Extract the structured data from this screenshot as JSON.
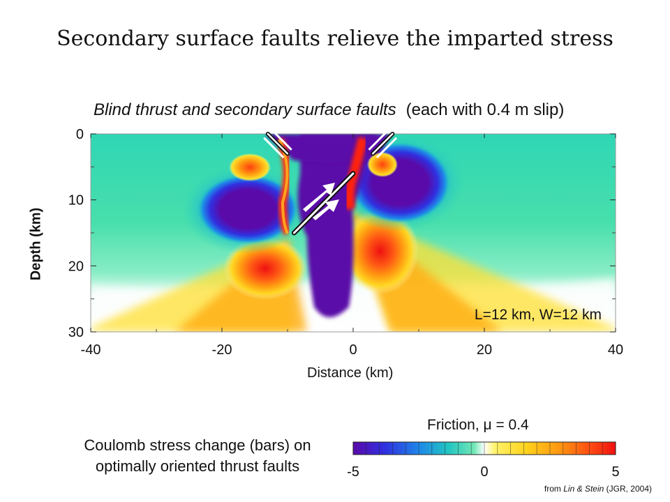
{
  "header": {
    "title": "Secondary surface faults relieve the imparted stress"
  },
  "plot": {
    "title_italic": "Blind thrust and secondary surface faults",
    "title_paren": "(each with 0.4 m slip)",
    "annotation": "L=12 km, W=12 km"
  },
  "chart_data": {
    "type": "heatmap",
    "title": "Blind thrust and secondary surface faults (each with 0.4 m slip)",
    "xlabel": "Distance  (km)",
    "ylabel": "Depth (km)",
    "xlim": [
      -40,
      40
    ],
    "ylim": [
      0,
      30
    ],
    "y_inverted": true,
    "xticks": [
      -40,
      -20,
      0,
      20,
      40
    ],
    "yticks": [
      0,
      10,
      20,
      30
    ],
    "colorbar": {
      "title": "Friction, μ = 0.4",
      "label": "Coulomb stress change (bars) on optimally oriented thrust faults",
      "min": -5,
      "max": 5,
      "ticks": [
        -5,
        0,
        5
      ],
      "colors": [
        "#5a0aa8",
        "#2f3fe0",
        "#1f8fe8",
        "#22c4c0",
        "#4fe0a6",
        "#ffffff",
        "#fff04a",
        "#ffc21a",
        "#ff8f10",
        "#ff4a12",
        "#f01010"
      ]
    },
    "faults": [
      {
        "name": "blind thrust",
        "from": [
          -9,
          15
        ],
        "to": [
          0,
          6
        ],
        "slip_m": 0.4
      },
      {
        "name": "secondary surface fault west",
        "from": [
          -13,
          0
        ],
        "to": [
          -10,
          3
        ],
        "slip_m": 0.4
      },
      {
        "name": "secondary surface fault east",
        "from": [
          6,
          0
        ],
        "to": [
          3,
          3
        ],
        "slip_m": 0.4
      }
    ],
    "fault_length_km": 12,
    "fault_width_km": 12
  },
  "credit": {
    "prefix": "from ",
    "authors": "Lin & Stein",
    "suffix": " (JGR, 2004)"
  }
}
